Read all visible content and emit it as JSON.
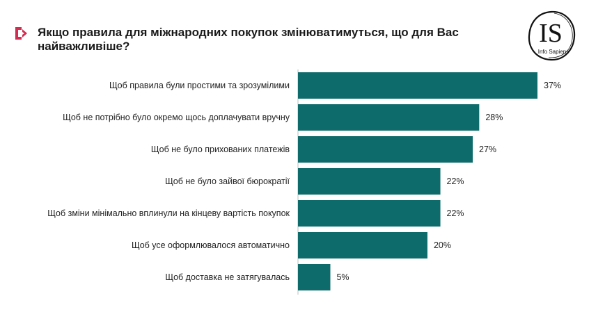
{
  "header": {
    "title": "Якщо правила для міжнародних покупок змінюватимуться, що для Вас найважливіше?",
    "mark_icon": "chevron-right-bracket-icon",
    "mark_color": "#d22c50"
  },
  "logo": {
    "initials": "IS",
    "name": "Info Sapiens"
  },
  "colors": {
    "bar": "#0d6b6b",
    "axis": "#bfbfbf"
  },
  "chart_data": {
    "type": "bar",
    "orientation": "horizontal",
    "categories": [
      "Щоб правила були простими та зрозумілими",
      "Щоб не потрібно було окремо щось доплачувати вручну",
      "Щоб не було прихованих платежів",
      "Щоб не було зайвої бюрократії",
      "Щоб зміни мінімально вплинули на кінцеву вартість покупок",
      "Щоб усе оформлювалося автоматично",
      "Щоб доставка не затягувалась"
    ],
    "values": [
      37,
      28,
      27,
      22,
      22,
      20,
      5
    ],
    "value_labels": [
      "37%",
      "28%",
      "27%",
      "22%",
      "22%",
      "20%",
      "5%"
    ],
    "unit": "%",
    "xlim": [
      0,
      37
    ],
    "grid": false,
    "legend": "none"
  }
}
